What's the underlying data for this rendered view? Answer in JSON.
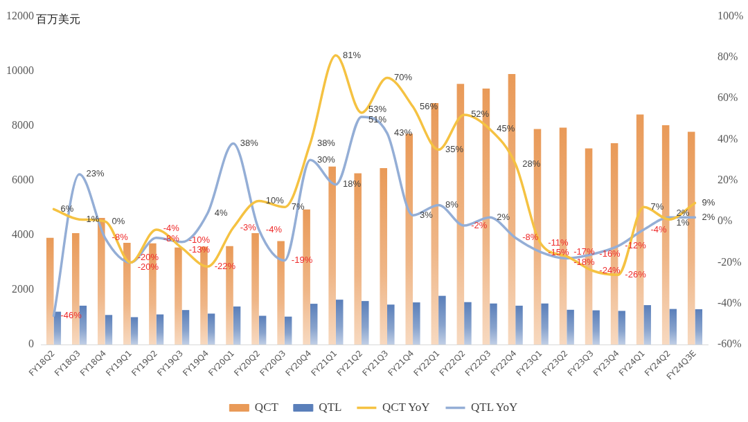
{
  "chart_data": {
    "type": "bar",
    "ylabel": "百万美元",
    "categories": [
      "FY18Q2",
      "FY18Q3",
      "FY18Q4",
      "FY19Q1",
      "FY19Q2",
      "FY19Q3",
      "FY19Q4",
      "FY20Q1",
      "FY20Q2",
      "FY20Q3",
      "FY20Q4",
      "FY21Q1",
      "FY21Q2",
      "FY21Q3",
      "FY21Q4",
      "FY22Q1",
      "FY22Q2",
      "FY22Q3",
      "FY22Q4",
      "FY23Q1",
      "FY23Q2",
      "FY23Q3",
      "FY23Q4",
      "FY24Q1",
      "FY24Q2",
      "FY24Q3E"
    ],
    "series": [
      {
        "name": "QCT",
        "color": "#e99a58",
        "values": [
          3900,
          4070,
          4630,
          3720,
          3700,
          3550,
          3580,
          3600,
          4070,
          3780,
          4940,
          6510,
          6260,
          6450,
          7710,
          8830,
          9530,
          9360,
          9890,
          7880,
          7930,
          7170,
          7360,
          8410,
          8020,
          7780
        ]
      },
      {
        "name": "QTL",
        "color": "#5a7fba",
        "values": [
          1200,
          1420,
          1080,
          1000,
          1100,
          1260,
          1130,
          1390,
          1050,
          1020,
          1490,
          1640,
          1590,
          1460,
          1540,
          1780,
          1550,
          1500,
          1420,
          1500,
          1270,
          1250,
          1230,
          1440,
          1300,
          1290
        ]
      },
      {
        "name": "QCT YoY",
        "type": "line",
        "axis": "y2",
        "color": "#f5c242",
        "values": [
          6,
          1,
          0,
          -20,
          -4,
          -13,
          -22,
          -3,
          10,
          7,
          38,
          81,
          53,
          70,
          56,
          35,
          52,
          45,
          28,
          -11,
          -17,
          -24,
          -26,
          7,
          1,
          9
        ],
        "value_labels": [
          "6%",
          "1%",
          "0%",
          "-20%",
          "-4%",
          "-13%",
          "-22%",
          "-3%",
          "10%",
          "7%",
          "38%",
          "81%",
          "53%",
          "70%",
          "56%",
          "35%",
          "52%",
          "45%",
          "28%",
          "-11%",
          "-17%",
          "-24%",
          "-26%",
          "7%",
          "1%",
          "9%"
        ]
      },
      {
        "name": "QTL YoY",
        "type": "line",
        "axis": "y2",
        "color": "#94aed6",
        "values": [
          -46,
          23,
          -8,
          -20,
          -8,
          -10,
          4,
          38,
          -4,
          -19,
          30,
          18,
          51,
          43,
          3,
          8,
          -2,
          2,
          -8,
          -15,
          -18,
          -16,
          -12,
          -4,
          2,
          2
        ],
        "value_labels": [
          "-46%",
          "23%",
          "-8%",
          "-20%",
          "-8%",
          "-10%",
          "4%",
          "38%",
          "-4%",
          "-19%",
          "30%",
          "18%",
          "51%",
          "43%",
          "3%",
          "8%",
          "-2%",
          "2%",
          "-8%",
          "-15%",
          "-18%",
          "-16%",
          "-12%",
          "-4%",
          "2%",
          "2%"
        ]
      }
    ],
    "ylim": [
      0,
      12000
    ],
    "yticks": [
      0,
      2000,
      4000,
      6000,
      8000,
      10000,
      12000
    ],
    "y2lim": [
      -60,
      100
    ],
    "y2ticks": [
      {
        "value": -60,
        "label": "-60%"
      },
      {
        "value": -40,
        "label": "-40%"
      },
      {
        "value": -20,
        "label": "-20%"
      },
      {
        "value": 0,
        "label": "0%"
      },
      {
        "value": 20,
        "label": "20%"
      },
      {
        "value": 40,
        "label": "40%"
      },
      {
        "value": 60,
        "label": "60%"
      },
      {
        "value": 80,
        "label": "80%"
      },
      {
        "value": 100,
        "label": "100%"
      }
    ],
    "grid": false,
    "legend": "bottom",
    "marker": "none"
  }
}
